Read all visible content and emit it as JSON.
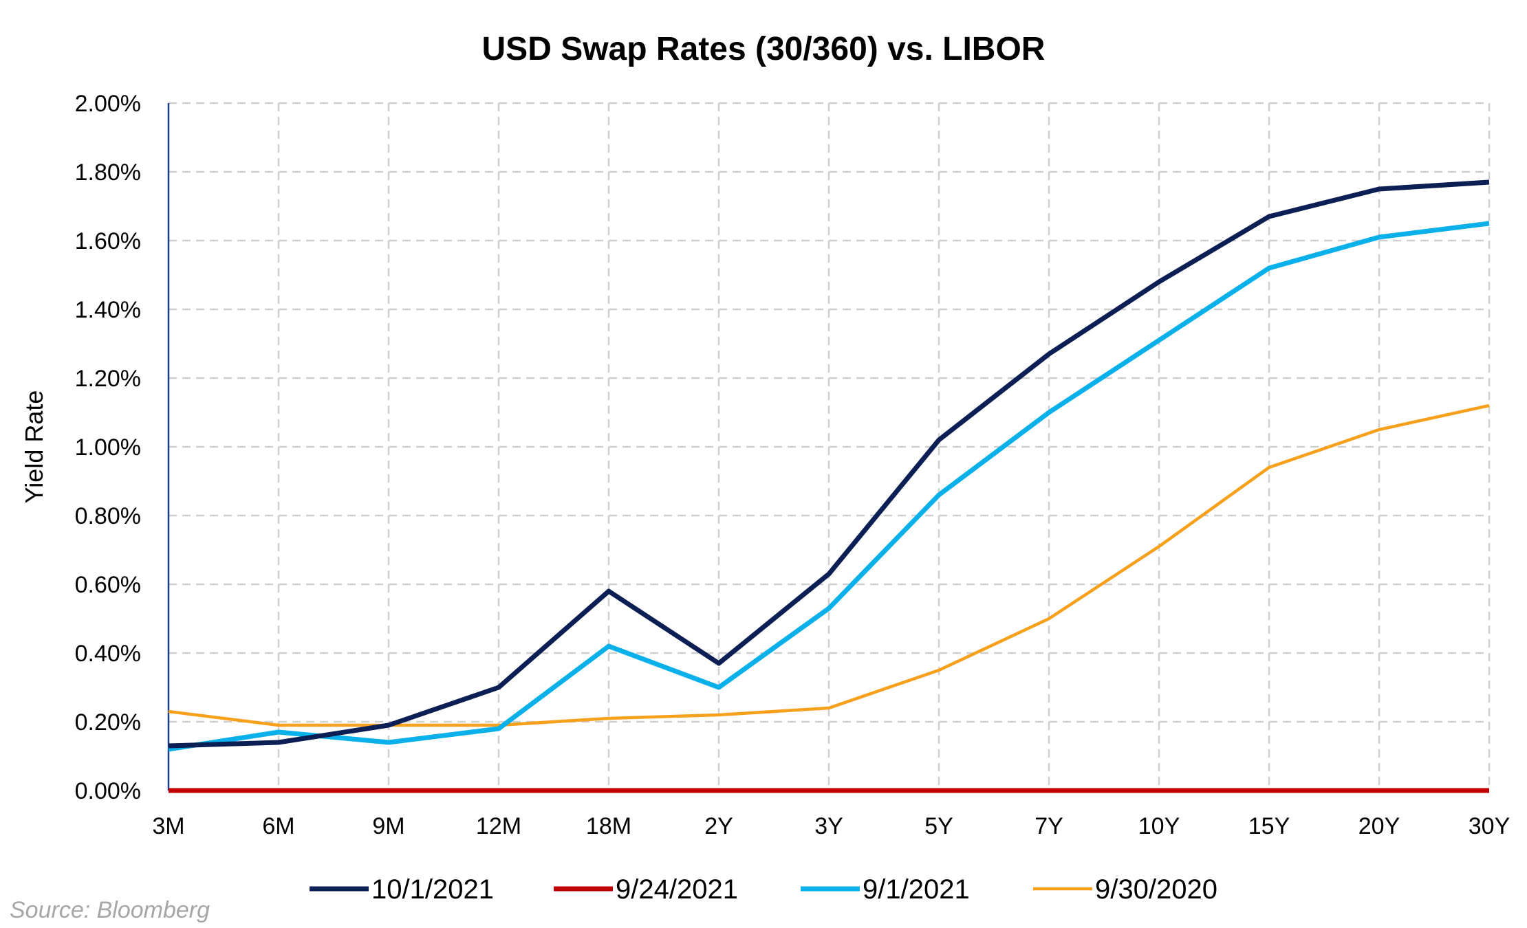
{
  "chart_data": {
    "type": "line",
    "title": "USD Swap Rates (30/360) vs. LIBOR",
    "ylabel": "Yield Rate",
    "xlabel": "",
    "ylim": [
      0,
      2.0
    ],
    "y_ticks": [
      "0.00%",
      "0.20%",
      "0.40%",
      "0.60%",
      "0.80%",
      "1.00%",
      "1.20%",
      "1.40%",
      "1.60%",
      "1.80%",
      "2.00%"
    ],
    "categories": [
      "3M",
      "6M",
      "9M",
      "12M",
      "18M",
      "2Y",
      "3Y",
      "5Y",
      "7Y",
      "10Y",
      "15Y",
      "20Y",
      "30Y"
    ],
    "grid": true,
    "legend_position": "bottom",
    "series": [
      {
        "name": "10/1/2021",
        "color": "#0c1f55",
        "values": [
          0.13,
          0.14,
          0.19,
          0.3,
          0.58,
          0.37,
          0.63,
          1.02,
          1.27,
          1.48,
          1.67,
          1.75,
          1.77
        ]
      },
      {
        "name": "9/24/2021",
        "color": "#c00000",
        "values": [
          0,
          0,
          0,
          0,
          0,
          0,
          0,
          0,
          0,
          0,
          0,
          0,
          0
        ]
      },
      {
        "name": "9/1/2021",
        "color": "#0ab0ea",
        "values": [
          0.12,
          0.17,
          0.14,
          0.18,
          0.42,
          0.3,
          0.53,
          0.86,
          1.1,
          1.31,
          1.52,
          1.61,
          1.65
        ]
      },
      {
        "name": "9/30/2020",
        "color": "#f7a01c",
        "values": [
          0.23,
          0.19,
          0.19,
          0.19,
          0.21,
          0.22,
          0.24,
          0.35,
          0.5,
          0.71,
          0.94,
          1.05,
          1.12
        ]
      }
    ],
    "source": "Source: Bloomberg"
  }
}
